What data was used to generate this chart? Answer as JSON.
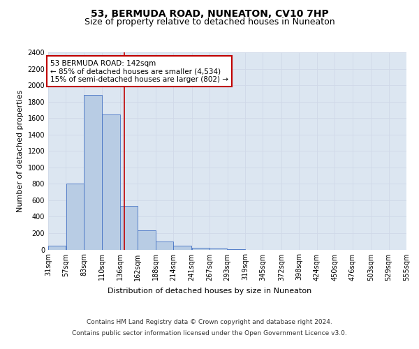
{
  "title": "53, BERMUDA ROAD, NUNEATON, CV10 7HP",
  "subtitle": "Size of property relative to detached houses in Nuneaton",
  "xlabel": "Distribution of detached houses by size in Nuneaton",
  "ylabel": "Number of detached properties",
  "footer_line1": "Contains HM Land Registry data © Crown copyright and database right 2024.",
  "footer_line2": "Contains public sector information licensed under the Open Government Licence v3.0.",
  "annotation_line1": "53 BERMUDA ROAD: 142sqm",
  "annotation_line2": "← 85% of detached houses are smaller (4,534)",
  "annotation_line3": "15% of semi-detached houses are larger (802) →",
  "property_size": 142,
  "bar_left_edges": [
    31,
    57,
    83,
    110,
    136,
    162,
    188,
    214,
    241,
    267,
    293,
    319,
    345,
    372,
    398,
    424,
    450,
    476,
    503,
    529
  ],
  "bar_widths": [
    26,
    26,
    27,
    26,
    26,
    26,
    26,
    27,
    26,
    26,
    26,
    26,
    27,
    26,
    26,
    26,
    26,
    27,
    26,
    26
  ],
  "bar_heights": [
    50,
    800,
    1880,
    1640,
    530,
    230,
    100,
    45,
    25,
    15,
    5,
    0,
    0,
    0,
    0,
    0,
    0,
    0,
    0,
    0
  ],
  "tick_labels": [
    "31sqm",
    "57sqm",
    "83sqm",
    "110sqm",
    "136sqm",
    "162sqm",
    "188sqm",
    "214sqm",
    "241sqm",
    "267sqm",
    "293sqm",
    "319sqm",
    "345sqm",
    "372sqm",
    "398sqm",
    "424sqm",
    "450sqm",
    "476sqm",
    "503sqm",
    "529sqm",
    "555sqm"
  ],
  "tick_positions": [
    31,
    57,
    83,
    110,
    136,
    162,
    188,
    214,
    241,
    267,
    293,
    319,
    345,
    372,
    398,
    424,
    450,
    476,
    503,
    529,
    555
  ],
  "ylim": [
    0,
    2400
  ],
  "yticks": [
    0,
    200,
    400,
    600,
    800,
    1000,
    1200,
    1400,
    1600,
    1800,
    2000,
    2200,
    2400
  ],
  "bar_color": "#b8cce4",
  "bar_edge_color": "#4472c4",
  "vline_color": "#c00000",
  "vline_x": 142,
  "grid_color": "#d0d8e8",
  "background_color": "#dce6f1",
  "annotation_box_color": "#ffffff",
  "annotation_box_edge": "#c00000",
  "title_fontsize": 10,
  "subtitle_fontsize": 9,
  "axis_label_fontsize": 8,
  "tick_fontsize": 7,
  "footer_fontsize": 6.5,
  "annotation_fontsize": 7.5
}
